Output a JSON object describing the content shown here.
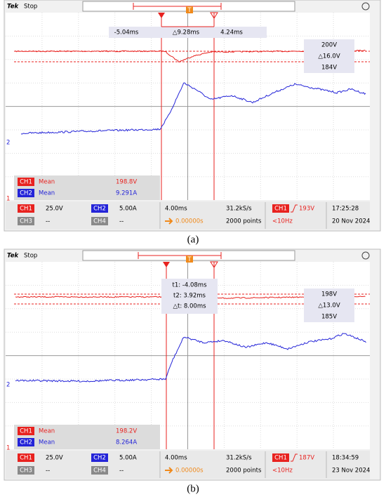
{
  "panels": [
    {
      "caption": "(a)",
      "brand": "Tek",
      "status": "Stop",
      "trigger_marker": "T",
      "cursors": [
        "-5.04ms",
        "△9.28ms",
        "4.24ms"
      ],
      "volt_cursors": [
        "200V",
        "△16.0V",
        "184V"
      ],
      "channel_markers": [
        "2",
        "1"
      ],
      "measurements": [
        {
          "channel": "CH1",
          "type": "Mean",
          "value": "198.8V"
        },
        {
          "channel": "CH2",
          "type": "Mean",
          "value": "9.291A"
        }
      ],
      "channels": [
        {
          "name": "CH1",
          "scale": "25.0V"
        },
        {
          "name": "CH2",
          "scale": "5.00A"
        },
        {
          "name": "CH3",
          "scale": "--"
        },
        {
          "name": "CH4",
          "scale": "--"
        }
      ],
      "timebase": "4.00ms",
      "position": "0.00000s",
      "sample_rate": "31.2kS/s",
      "record": "2000 points",
      "trigger_source": "CH1",
      "trigger_level": "193V",
      "frequency": "<10Hz",
      "time": "17:25:28",
      "date": "20 Nov 2024"
    },
    {
      "caption": "(b)",
      "brand": "Tek",
      "status": "Stop",
      "trigger_marker": "T",
      "cursors": [
        "t1: -4.08ms",
        "t2: 3.92ms",
        "△t: 8.00ms"
      ],
      "volt_cursors": [
        "198V",
        "△13.0V",
        "185V"
      ],
      "channel_markers": [
        "2",
        "1"
      ],
      "measurements": [
        {
          "channel": "CH1",
          "type": "Mean",
          "value": "198.2V"
        },
        {
          "channel": "CH2",
          "type": "Mean",
          "value": "8.264A"
        }
      ],
      "channels": [
        {
          "name": "CH1",
          "scale": "25.0V"
        },
        {
          "name": "CH2",
          "scale": "5.00A"
        },
        {
          "name": "CH3",
          "scale": "--"
        },
        {
          "name": "CH4",
          "scale": "--"
        }
      ],
      "timebase": "4.00ms",
      "position": "0.00000s",
      "sample_rate": "31.2kS/s",
      "record": "2000 points",
      "trigger_source": "CH1",
      "trigger_level": "187V",
      "frequency": "<10Hz",
      "time": "18:34:59",
      "date": "23 Nov 2024"
    }
  ]
}
